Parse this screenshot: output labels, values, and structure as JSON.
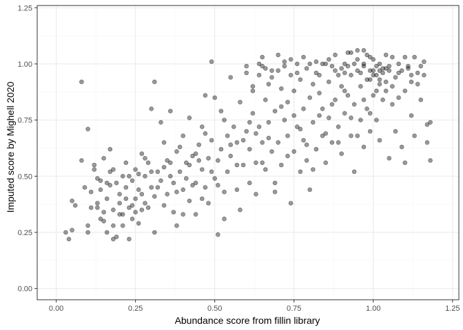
{
  "chart_data": {
    "type": "scatter",
    "xlabel": "Abundance score from fillin library",
    "ylabel": "Imputed score by Mighell 2020",
    "xlim": [
      -0.06,
      1.27
    ],
    "ylim": [
      -0.05,
      1.26
    ],
    "x_ticks": [
      0.0,
      0.25,
      0.5,
      0.75,
      1.0,
      1.25
    ],
    "y_ticks": [
      0.0,
      0.25,
      0.5,
      0.75,
      1.0,
      1.25
    ],
    "x_tick_labels": [
      "0.00",
      "0.25",
      "0.50",
      "0.75",
      "1.00",
      "1.25"
    ],
    "y_tick_labels": [
      "0.00",
      "0.25",
      "0.50",
      "0.75",
      "1.00",
      "1.25"
    ],
    "grid": true,
    "point_color": "#000000",
    "point_alpha": 0.4,
    "panel_border": "#333333",
    "grid_major_color": "#ebebeb",
    "grid_minor_color": "#f5f5f5",
    "points": [
      [
        0.03,
        0.25
      ],
      [
        0.04,
        0.22
      ],
      [
        0.05,
        0.39
      ],
      [
        0.06,
        0.37
      ],
      [
        0.05,
        0.26
      ],
      [
        0.08,
        0.92
      ],
      [
        0.08,
        0.57
      ],
      [
        0.09,
        0.45
      ],
      [
        0.1,
        0.71
      ],
      [
        0.1,
        0.28
      ],
      [
        0.1,
        0.25
      ],
      [
        0.11,
        0.36
      ],
      [
        0.12,
        0.55
      ],
      [
        0.12,
        0.53
      ],
      [
        0.13,
        0.38
      ],
      [
        0.13,
        0.36
      ],
      [
        0.14,
        0.31
      ],
      [
        0.14,
        0.44
      ],
      [
        0.14,
        0.48
      ],
      [
        0.15,
        0.58
      ],
      [
        0.15,
        0.3
      ],
      [
        0.16,
        0.25
      ],
      [
        0.16,
        0.4
      ],
      [
        0.17,
        0.52
      ],
      [
        0.17,
        0.46
      ],
      [
        0.17,
        0.62
      ],
      [
        0.18,
        0.28
      ],
      [
        0.18,
        0.35
      ],
      [
        0.18,
        0.22
      ],
      [
        0.19,
        0.47
      ],
      [
        0.2,
        0.42
      ],
      [
        0.2,
        0.38
      ],
      [
        0.21,
        0.5
      ],
      [
        0.21,
        0.33
      ],
      [
        0.22,
        0.56
      ],
      [
        0.22,
        0.45
      ],
      [
        0.23,
        0.22
      ],
      [
        0.23,
        0.36
      ],
      [
        0.24,
        0.31
      ],
      [
        0.24,
        0.48
      ],
      [
        0.25,
        0.53
      ],
      [
        0.25,
        0.4
      ],
      [
        0.26,
        0.29
      ],
      [
        0.26,
        0.44
      ],
      [
        0.27,
        0.35
      ],
      [
        0.27,
        0.6
      ],
      [
        0.28,
        0.5
      ],
      [
        0.28,
        0.38
      ],
      [
        0.29,
        0.56
      ],
      [
        0.3,
        0.8
      ],
      [
        0.3,
        0.45
      ],
      [
        0.31,
        0.92
      ],
      [
        0.31,
        0.25
      ],
      [
        0.32,
        0.52
      ],
      [
        0.33,
        0.74
      ],
      [
        0.33,
        0.48
      ],
      [
        0.34,
        0.65
      ],
      [
        0.35,
        0.42
      ],
      [
        0.35,
        0.57
      ],
      [
        0.36,
        0.79
      ],
      [
        0.37,
        0.47
      ],
      [
        0.37,
        0.34
      ],
      [
        0.38,
        0.28
      ],
      [
        0.38,
        0.61
      ],
      [
        0.39,
        0.52
      ],
      [
        0.4,
        0.68
      ],
      [
        0.4,
        0.44
      ],
      [
        0.41,
        0.56
      ],
      [
        0.42,
        0.76
      ],
      [
        0.42,
        0.39
      ],
      [
        0.43,
        0.59
      ],
      [
        0.44,
        0.47
      ],
      [
        0.44,
        0.33
      ],
      [
        0.45,
        0.64
      ],
      [
        0.46,
        0.53
      ],
      [
        0.46,
        0.72
      ],
      [
        0.47,
        0.45
      ],
      [
        0.47,
        0.86
      ],
      [
        0.48,
        0.58
      ],
      [
        0.48,
        0.38
      ],
      [
        0.49,
        1.01
      ],
      [
        0.49,
        0.66
      ],
      [
        0.5,
        0.49
      ],
      [
        0.5,
        0.85
      ],
      [
        0.51,
        0.57
      ],
      [
        0.51,
        0.24
      ],
      [
        0.52,
        0.79
      ],
      [
        0.52,
        0.62
      ],
      [
        0.53,
        0.43
      ],
      [
        0.53,
        0.31
      ],
      [
        0.54,
        0.68
      ],
      [
        0.54,
        0.52
      ],
      [
        0.55,
        0.94
      ],
      [
        0.55,
        0.59
      ],
      [
        0.56,
        0.72
      ],
      [
        0.57,
        0.44
      ],
      [
        0.57,
        0.65
      ],
      [
        0.58,
        0.35
      ],
      [
        0.58,
        0.83
      ],
      [
        0.59,
        0.55
      ],
      [
        0.6,
        0.7
      ],
      [
        0.6,
        0.99
      ],
      [
        0.61,
        0.47
      ],
      [
        0.61,
        0.62
      ],
      [
        0.62,
        0.78
      ],
      [
        0.62,
        0.88
      ],
      [
        0.63,
        0.56
      ],
      [
        0.63,
        0.42
      ],
      [
        0.64,
        0.72
      ],
      [
        0.64,
        0.95
      ],
      [
        0.65,
        0.65
      ],
      [
        0.65,
        0.99
      ],
      [
        0.65,
        1.03
      ],
      [
        0.66,
        0.53
      ],
      [
        0.66,
        0.84
      ],
      [
        0.67,
        0.91
      ],
      [
        0.67,
        0.74
      ],
      [
        0.68,
        0.61
      ],
      [
        0.68,
        0.97
      ],
      [
        0.69,
        0.47
      ],
      [
        0.69,
        0.79
      ],
      [
        0.7,
        1.04
      ],
      [
        0.7,
        0.65
      ],
      [
        0.71,
        0.89
      ],
      [
        0.71,
        0.55
      ],
      [
        0.72,
        0.99
      ],
      [
        0.72,
        0.75
      ],
      [
        0.73,
        0.68
      ],
      [
        0.73,
        0.83
      ],
      [
        0.74,
        0.38
      ],
      [
        0.74,
        0.95
      ],
      [
        0.75,
        0.61
      ],
      [
        0.75,
        0.88
      ],
      [
        0.76,
        1.0
      ],
      [
        0.76,
        0.72
      ],
      [
        0.77,
        0.52
      ],
      [
        0.77,
        0.93
      ],
      [
        0.78,
        0.8
      ],
      [
        0.78,
        0.66
      ],
      [
        0.79,
        0.98
      ],
      [
        0.79,
        0.57
      ],
      [
        0.8,
        0.85
      ],
      [
        0.8,
        0.44
      ],
      [
        0.81,
        0.91
      ],
      [
        0.81,
        0.74
      ],
      [
        0.82,
        1.01
      ],
      [
        0.82,
        0.62
      ],
      [
        0.83,
        0.87
      ],
      [
        0.83,
        0.95
      ],
      [
        0.84,
        0.68
      ],
      [
        0.84,
        0.8
      ],
      [
        0.85,
        1.0
      ],
      [
        0.85,
        0.56
      ],
      [
        0.86,
        0.92
      ],
      [
        0.86,
        0.76
      ],
      [
        0.87,
        0.99
      ],
      [
        0.87,
        0.65
      ],
      [
        0.88,
        0.84
      ],
      [
        0.88,
        1.04
      ],
      [
        0.89,
        0.72
      ],
      [
        0.89,
        0.95
      ],
      [
        0.9,
        0.9
      ],
      [
        0.9,
        0.6
      ],
      [
        0.91,
        1.0
      ],
      [
        0.91,
        0.78
      ],
      [
        0.92,
        0.86
      ],
      [
        0.92,
        1.05
      ],
      [
        0.93,
        0.68
      ],
      [
        0.93,
        0.95
      ],
      [
        0.94,
        0.82
      ],
      [
        0.94,
        0.52
      ],
      [
        0.95,
        0.97
      ],
      [
        0.95,
        1.02
      ],
      [
        0.96,
        0.75
      ],
      [
        0.96,
        0.9
      ],
      [
        0.97,
        0.99
      ],
      [
        0.97,
        0.63
      ],
      [
        0.98,
        0.93
      ],
      [
        0.98,
        0.8
      ],
      [
        0.99,
        1.03
      ],
      [
        0.99,
        0.7
      ],
      [
        1.0,
        0.97
      ],
      [
        1.0,
        0.86
      ],
      [
        1.01,
        0.95
      ],
      [
        1.01,
        0.75
      ],
      [
        1.02,
        1.0
      ],
      [
        1.02,
        0.66
      ],
      [
        1.03,
        0.98
      ],
      [
        1.03,
        0.84
      ],
      [
        1.04,
        0.92
      ],
      [
        1.05,
        0.97
      ],
      [
        1.05,
        0.58
      ],
      [
        1.06,
        1.03
      ],
      [
        1.06,
        0.82
      ],
      [
        1.07,
        0.94
      ],
      [
        1.07,
        0.7
      ],
      [
        1.08,
        1.0
      ],
      [
        1.09,
        0.63
      ],
      [
        1.09,
        0.97
      ],
      [
        1.1,
        0.88
      ],
      [
        1.1,
        0.56
      ],
      [
        1.11,
        0.99
      ],
      [
        1.12,
        0.92
      ],
      [
        1.12,
        0.77
      ],
      [
        1.13,
        1.03
      ],
      [
        1.14,
        0.96
      ],
      [
        1.15,
        0.84
      ],
      [
        1.16,
        0.95
      ],
      [
        1.17,
        0.73
      ],
      [
        1.17,
        0.65
      ],
      [
        1.18,
        0.57
      ],
      [
        1.18,
        0.74
      ],
      [
        0.93,
        1.05
      ],
      [
        0.95,
        1.06
      ],
      [
        0.97,
        1.0
      ],
      [
        0.99,
        0.97
      ],
      [
        1.01,
        0.99
      ],
      [
        1.03,
        0.96
      ],
      [
        1.04,
        0.98
      ],
      [
        0.9,
        0.98
      ],
      [
        0.92,
        0.99
      ],
      [
        0.96,
        0.96
      ],
      [
        0.98,
        1.04
      ],
      [
        1.0,
        0.95
      ],
      [
        1.02,
        0.97
      ],
      [
        1.04,
        1.04
      ],
      [
        0.91,
        0.96
      ],
      [
        0.94,
        1.0
      ],
      [
        0.97,
        1.06
      ],
      [
        0.99,
        0.93
      ],
      [
        1.0,
        1.02
      ],
      [
        1.02,
        0.93
      ],
      [
        1.05,
        0.99
      ],
      [
        1.08,
        0.96
      ],
      [
        1.11,
        0.98
      ],
      [
        0.88,
        0.97
      ],
      [
        0.86,
        1.02
      ],
      [
        0.84,
        1.0
      ],
      [
        0.82,
        0.96
      ],
      [
        0.8,
        1.0
      ],
      [
        0.78,
        1.03
      ],
      [
        0.76,
        0.96
      ],
      [
        0.74,
        1.02
      ],
      [
        0.72,
        1.01
      ],
      [
        0.7,
        0.97
      ],
      [
        0.68,
        0.94
      ],
      [
        0.66,
        0.98
      ],
      [
        0.64,
        1.0
      ],
      [
        0.62,
        0.9
      ],
      [
        0.6,
        0.96
      ],
      [
        0.19,
        0.23
      ],
      [
        0.21,
        0.28
      ],
      [
        0.24,
        0.37
      ],
      [
        0.26,
        0.51
      ],
      [
        0.29,
        0.36
      ],
      [
        0.31,
        0.41
      ],
      [
        0.34,
        0.54
      ],
      [
        0.36,
        0.5
      ],
      [
        0.39,
        0.63
      ],
      [
        0.41,
        0.49
      ],
      [
        0.43,
        0.46
      ],
      [
        0.45,
        0.57
      ],
      [
        0.47,
        0.69
      ],
      [
        0.49,
        0.52
      ],
      [
        0.51,
        0.46
      ],
      [
        0.53,
        0.75
      ],
      [
        0.55,
        0.64
      ],
      [
        0.57,
        0.55
      ],
      [
        0.59,
        0.66
      ],
      [
        0.61,
        0.74
      ],
      [
        0.63,
        0.69
      ],
      [
        0.65,
        0.56
      ],
      [
        0.67,
        0.67
      ],
      [
        0.69,
        0.43
      ],
      [
        0.71,
        0.81
      ],
      [
        0.73,
        0.59
      ],
      [
        0.75,
        0.77
      ],
      [
        0.77,
        0.71
      ],
      [
        0.79,
        0.64
      ],
      [
        0.81,
        0.53
      ],
      [
        0.83,
        0.77
      ],
      [
        0.85,
        0.69
      ],
      [
        0.87,
        0.82
      ],
      [
        0.89,
        0.65
      ],
      [
        0.91,
        0.88
      ],
      [
        0.93,
        0.76
      ],
      [
        0.95,
        0.68
      ],
      [
        0.97,
        0.84
      ],
      [
        0.99,
        0.78
      ],
      [
        1.01,
        0.88
      ],
      [
        0.11,
        0.43
      ],
      [
        0.13,
        0.49
      ],
      [
        0.15,
        0.34
      ],
      [
        0.16,
        0.47
      ],
      [
        0.18,
        0.53
      ],
      [
        0.2,
        0.33
      ],
      [
        0.22,
        0.4
      ],
      [
        0.23,
        0.5
      ],
      [
        0.25,
        0.34
      ],
      [
        0.27,
        0.42
      ],
      [
        0.28,
        0.58
      ],
      [
        0.3,
        0.52
      ],
      [
        0.32,
        0.45
      ],
      [
        0.34,
        0.37
      ],
      [
        0.36,
        0.56
      ],
      [
        0.38,
        0.43
      ],
      [
        0.4,
        0.33
      ],
      [
        0.42,
        0.55
      ],
      [
        0.44,
        0.6
      ],
      [
        0.46,
        0.4
      ],
      [
        1.13,
        0.68
      ],
      [
        1.15,
        0.99
      ],
      [
        1.16,
        1.01
      ],
      [
        1.14,
        0.91
      ],
      [
        1.12,
        0.95
      ],
      [
        1.1,
        1.03
      ],
      [
        1.08,
        0.85
      ],
      [
        1.06,
        0.9
      ],
      [
        1.04,
        0.88
      ],
      [
        1.02,
        0.91
      ]
    ]
  }
}
